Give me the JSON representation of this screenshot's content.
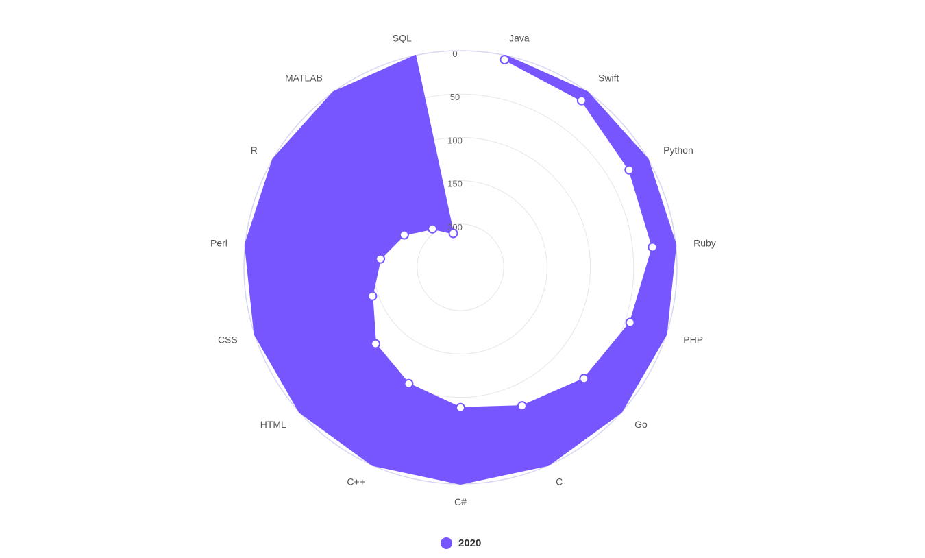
{
  "chart_data": {
    "type": "radar",
    "categories": [
      "Java",
      "Swift",
      "Python",
      "Ruby",
      "PHP",
      "Go",
      "C",
      "C#",
      "C++",
      "HTML",
      "CSS",
      "Perl",
      "R",
      "MATLAB",
      "SQL"
    ],
    "series": [
      {
        "name": "2020",
        "start": [
          0,
          0,
          0,
          0,
          0,
          0,
          0,
          0,
          0,
          0,
          0,
          0,
          0,
          0,
          0
        ],
        "end": [
          5,
          12,
          25,
          27,
          44,
          58,
          75,
          88,
          103,
          118,
          143,
          157,
          175,
          195,
          210
        ]
      }
    ],
    "radial_ticks": [
      "0",
      "50",
      "100",
      "150",
      "200"
    ],
    "radial_axis_reversed": true,
    "rmin": 0,
    "rmax": 250,
    "grid": true,
    "legend_position": "bottom",
    "colors": {
      "series": "#7856ff",
      "grid": "#e6e6e6",
      "outer_ring": "#d7d7f2",
      "point_fill": "#ffffff"
    }
  }
}
